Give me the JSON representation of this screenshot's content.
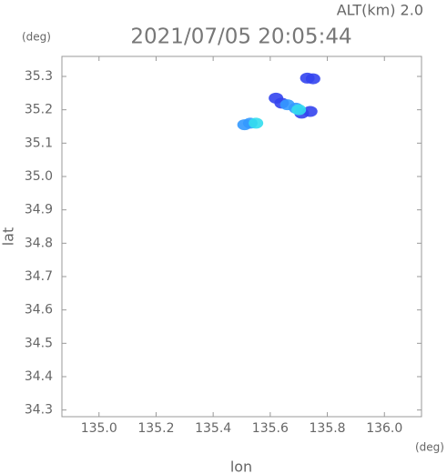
{
  "chart_data": {
    "type": "scatter",
    "title": "2021/07/05 20:05:44",
    "altitude_label": "ALT(km) 2.0",
    "y_unit": "(deg)",
    "x_unit": "(deg)",
    "ylabel": "lat",
    "xlabel": "lon",
    "xlim": [
      134.87,
      136.13
    ],
    "ylim": [
      34.28,
      35.36
    ],
    "xticks": [
      {
        "value": 135.0,
        "label": "135.0"
      },
      {
        "value": 135.2,
        "label": "135.2"
      },
      {
        "value": 135.4,
        "label": "135.4"
      },
      {
        "value": 135.6,
        "label": "135.6"
      },
      {
        "value": 135.8,
        "label": "135.8"
      },
      {
        "value": 136.0,
        "label": "136.0"
      }
    ],
    "yticks": [
      34.3,
      34.4,
      34.5,
      34.6,
      34.7,
      34.8,
      34.9,
      {
        "value": 35.0,
        "label": "35.0"
      },
      35.1,
      35.2,
      35.3
    ],
    "series": [
      {
        "color": "#3344ee",
        "x": [
          135.73,
          135.75,
          135.62,
          135.64,
          135.71,
          135.74
        ],
        "y": [
          35.295,
          35.293,
          35.235,
          35.22,
          35.19,
          35.195
        ]
      },
      {
        "color": "#3399ff",
        "x": [
          135.66,
          135.69,
          135.53,
          135.51
        ],
        "y": [
          35.215,
          35.205,
          35.16,
          35.155
        ]
      },
      {
        "color": "#33ddee",
        "x": [
          135.7,
          135.55
        ],
        "y": [
          35.2,
          35.16
        ]
      }
    ]
  }
}
